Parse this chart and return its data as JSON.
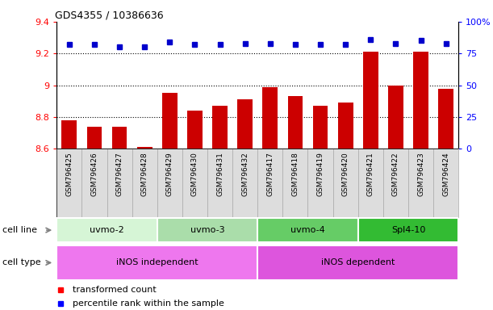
{
  "title": "GDS4355 / 10386636",
  "samples": [
    "GSM796425",
    "GSM796426",
    "GSM796427",
    "GSM796428",
    "GSM796429",
    "GSM796430",
    "GSM796431",
    "GSM796432",
    "GSM796417",
    "GSM796418",
    "GSM796419",
    "GSM796420",
    "GSM796421",
    "GSM796422",
    "GSM796423",
    "GSM796424"
  ],
  "bar_values": [
    8.78,
    8.74,
    8.74,
    8.61,
    8.95,
    8.84,
    8.87,
    8.91,
    8.99,
    8.93,
    8.87,
    8.89,
    9.21,
    9.0,
    9.21,
    8.98
  ],
  "percentile_values": [
    82,
    82,
    80,
    80,
    84,
    82,
    82,
    83,
    83,
    82,
    82,
    82,
    86,
    83,
    85,
    83
  ],
  "bar_color": "#cc0000",
  "dot_color": "#0000cc",
  "ylim_left": [
    8.6,
    9.4
  ],
  "ylim_right": [
    0,
    100
  ],
  "yticks_left": [
    8.6,
    8.8,
    9.0,
    9.2,
    9.4
  ],
  "yticks_right": [
    0,
    25,
    50,
    75,
    100
  ],
  "ytick_labels_right": [
    "0",
    "25",
    "50",
    "75",
    "100%"
  ],
  "grid_values": [
    8.8,
    9.0,
    9.2
  ],
  "cell_lines": [
    {
      "label": "uvmo-2",
      "start": 0,
      "end": 3,
      "color": "#d6f5d6"
    },
    {
      "label": "uvmo-3",
      "start": 4,
      "end": 7,
      "color": "#aaddaa"
    },
    {
      "label": "uvmo-4",
      "start": 8,
      "end": 11,
      "color": "#66cc66"
    },
    {
      "label": "Spl4-10",
      "start": 12,
      "end": 15,
      "color": "#33bb33"
    }
  ],
  "cell_types": [
    {
      "label": "iNOS independent",
      "start": 0,
      "end": 7,
      "color": "#ee77ee"
    },
    {
      "label": "iNOS dependent",
      "start": 8,
      "end": 15,
      "color": "#dd55dd"
    }
  ],
  "bar_width": 0.6,
  "label_box_color": "#dddddd",
  "label_box_border": "#aaaaaa"
}
